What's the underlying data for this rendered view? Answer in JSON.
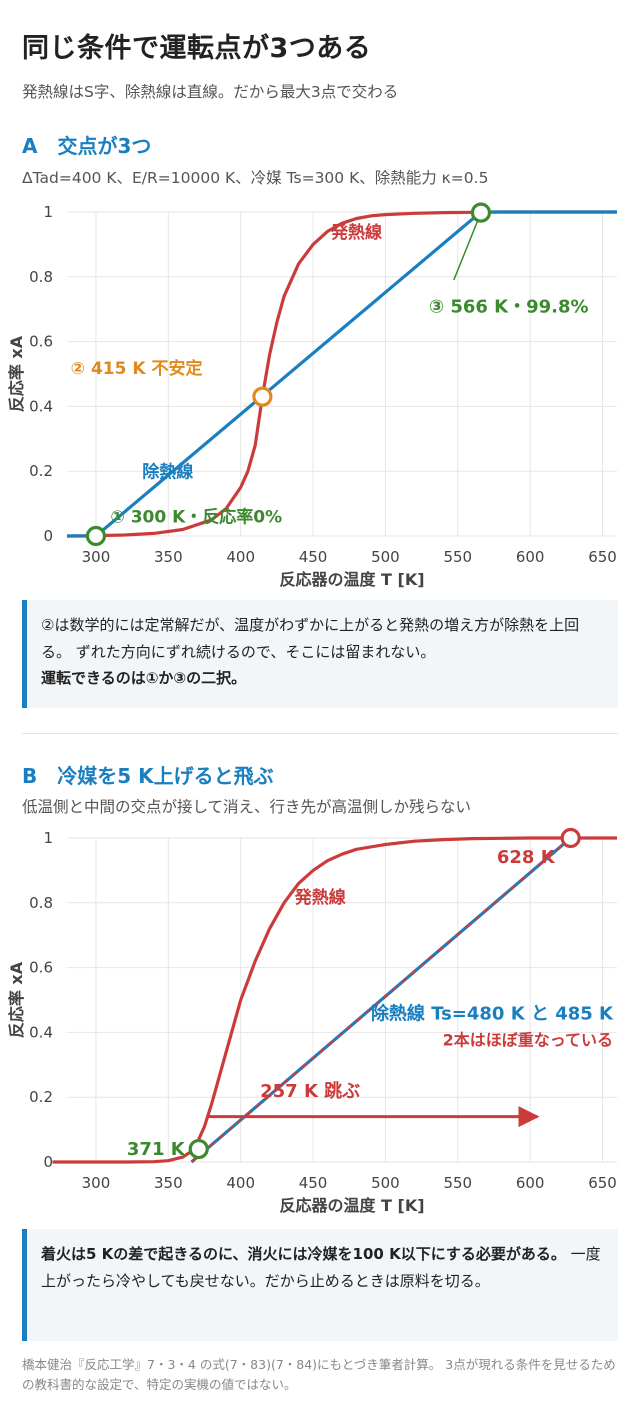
{
  "page": {
    "title": "同じ条件で運転点が3つある",
    "subtitle": "発熱線はS字、除熱線は直線。だから最大3点で交わる",
    "footnote": "橋本健治『反応工学』7・3・4 の式(7・83)(7・84)にもとづき筆者計算。 3点が現れる条件を見せるための教科書的な設定で、特定の実機の値ではない。"
  },
  "colors": {
    "heat_gen": "#cc3b3b",
    "heat_rem": "#1a7fc0",
    "stable": "#3c8a2e",
    "unstable": "#e08a1e",
    "accent": "#1a7fc0"
  },
  "section_a": {
    "heading": "A　交点が3つ",
    "params": "ΔTad=400 K、E/R=10000 K、冷媒 Ts=300 K、除熱能力 κ=0.5",
    "note_line1": "②は数学的には定常解だが、温度がわずかに上がると発熱の増え方が除熱を上回る。 ずれた方向にずれ続けるので、そこには留まれない。",
    "note_line2": "運転できるのは①か③の二択。"
  },
  "section_b": {
    "heading": "B　冷媒を5 K上げると飛ぶ",
    "sub": "低温側と中間の交点が接して消え、行き先が高温側しか残らない",
    "note_bold": "着火は5 Kの差で起きるのに、消火には冷媒を100 K以下にする必要がある。",
    "note_rest": " 一度上がったら冷やしても戻せない。だから止めるときは原料を切る。"
  },
  "chart_data": [
    {
      "type": "line",
      "xlabel": "反応器の温度 T [K]",
      "ylabel": "反応率 xA",
      "xlim": [
        280,
        660
      ],
      "ylim": [
        0,
        1
      ],
      "x_ticks": [
        300,
        350,
        400,
        450,
        500,
        550,
        600,
        650
      ],
      "y_ticks": [
        0,
        0.2,
        0.4,
        0.6,
        0.8,
        1
      ],
      "y_tick_labels": [
        "0",
        "0.2",
        "0.4",
        "0.6",
        "0.8",
        "1"
      ],
      "grid": true,
      "series": [
        {
          "name": "発熱線",
          "kind": "heat_generation",
          "ts": 300,
          "x": [
            280,
            300,
            320,
            340,
            360,
            380,
            390,
            400,
            405,
            410,
            415,
            420,
            425,
            430,
            440,
            450,
            460,
            470,
            480,
            490,
            500,
            520,
            540,
            560,
            580,
            600,
            620,
            640,
            660
          ],
          "y": [
            0,
            0.001,
            0.003,
            0.008,
            0.02,
            0.05,
            0.085,
            0.15,
            0.2,
            0.28,
            0.43,
            0.56,
            0.66,
            0.74,
            0.84,
            0.9,
            0.94,
            0.965,
            0.98,
            0.988,
            0.992,
            0.996,
            0.998,
            0.999,
            1,
            1,
            1,
            1,
            1
          ]
        },
        {
          "name": "除熱線",
          "kind": "heat_removal",
          "ts": 300,
          "x": [
            280,
            300,
            566,
            660
          ],
          "y": [
            0,
            0,
            1,
            1
          ]
        }
      ],
      "points": [
        {
          "label": "① 300 K・反応率0%",
          "x": 300,
          "y": 0,
          "stable": true
        },
        {
          "label": "② 415 K 不安定",
          "x": 415,
          "y": 0.43,
          "stable": false
        },
        {
          "label": "③ 566 K・99.8%",
          "x": 566,
          "y": 0.998,
          "stable": true
        }
      ],
      "annotations": {
        "gen_label": "発熱線",
        "rem_label": "除熱線"
      }
    },
    {
      "type": "line",
      "xlabel": "反応器の温度 T [K]",
      "ylabel": "反応率 xA",
      "xlim": [
        280,
        660
      ],
      "ylim": [
        0,
        1
      ],
      "x_ticks": [
        300,
        350,
        400,
        450,
        500,
        550,
        600,
        650
      ],
      "y_ticks": [
        0,
        0.2,
        0.4,
        0.6,
        0.8,
        1
      ],
      "y_tick_labels": [
        "0",
        "0.2",
        "0.4",
        "0.6",
        "0.8",
        "1"
      ],
      "grid": true,
      "series": [
        {
          "name": "発熱線",
          "kind": "heat_generation",
          "x": [
            270,
            300,
            320,
            340,
            350,
            360,
            365,
            370,
            375,
            380,
            390,
            400,
            410,
            420,
            430,
            440,
            450,
            460,
            470,
            480,
            500,
            520,
            540,
            560,
            580,
            600,
            620,
            640,
            660
          ],
          "y": [
            0,
            0,
            0,
            0.001,
            0.004,
            0.015,
            0.03,
            0.06,
            0.11,
            0.18,
            0.34,
            0.5,
            0.62,
            0.72,
            0.8,
            0.86,
            0.9,
            0.93,
            0.95,
            0.965,
            0.98,
            0.99,
            0.995,
            0.998,
            0.999,
            1,
            1,
            1,
            1
          ]
        },
        {
          "name": "除熱線 Ts=480 K",
          "kind": "heat_removal",
          "x": [
            366,
            628
          ],
          "y": [
            0,
            1
          ]
        },
        {
          "name": "除熱線 Ts=485 K",
          "kind": "heat_removal_dashed",
          "x": [
            366,
            628
          ],
          "y": [
            0,
            1
          ]
        }
      ],
      "points": [
        {
          "label": "371 K",
          "x": 371,
          "y": 0.04,
          "stable": true
        },
        {
          "label": "628 K",
          "x": 628,
          "y": 1.0,
          "stable": false
        }
      ],
      "jump_arrow": {
        "from_x": 371,
        "to_x": 605,
        "y": 0.14,
        "label": "257 K 跳ぶ"
      },
      "annotations": {
        "gen_label": "発熱線",
        "rem_label": "除熱線 Ts=480 K と 485 K",
        "rem_sub": "2本はほぼ重なっている"
      }
    }
  ]
}
